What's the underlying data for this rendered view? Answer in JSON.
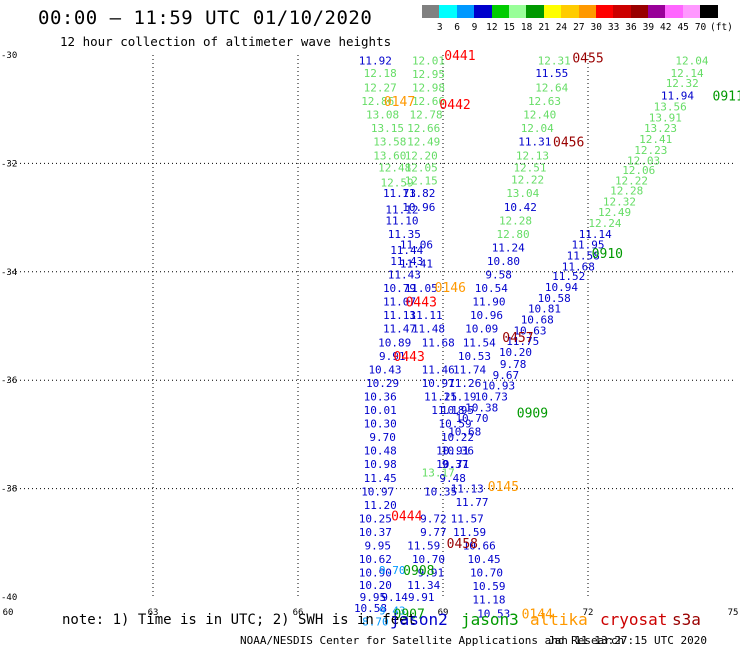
{
  "header": {
    "title": "00:00 – 11:59 UTC 01/10/2020",
    "subtitle": "12 hour collection of altimeter wave heights"
  },
  "legend": {
    "colors": [
      "#808080",
      "#00ffff",
      "#0099ff",
      "#0000cc",
      "#00cc00",
      "#99ff99",
      "#009900",
      "#ffff00",
      "#ffcc00",
      "#ff9900",
      "#ff0000",
      "#cc0000",
      "#990000",
      "#990099",
      "#ff66ff",
      "#ff99ff",
      "#000000"
    ],
    "labels": [
      "3",
      "6",
      "9",
      "12",
      "15",
      "18",
      "21",
      "24",
      "27",
      "30",
      "33",
      "36",
      "39",
      "42",
      "45",
      "70"
    ],
    "units": "(ft)"
  },
  "map": {
    "lon_ticks": [
      "60",
      "63",
      "66",
      "69",
      "72",
      "75"
    ],
    "lat_ticks": [
      "-30",
      "-32",
      "-34",
      "-36",
      "-38",
      "-40"
    ],
    "labels": [
      {
        "t": "11.92",
        "c": "#0000cc",
        "lon": 67.6,
        "lat": -30.1
      },
      {
        "t": "12.18",
        "c": "#66dd66",
        "lon": 67.7,
        "lat": -30.33
      },
      {
        "t": "12.27",
        "c": "#66dd66",
        "lon": 67.7,
        "lat": -30.6
      },
      {
        "t": "12.86",
        "c": "#66dd66",
        "lon": 67.65,
        "lat": -30.85
      },
      {
        "t": "13.08",
        "c": "#66dd66",
        "lon": 67.75,
        "lat": -31.1
      },
      {
        "t": "13.15",
        "c": "#66dd66",
        "lon": 67.85,
        "lat": -31.35
      },
      {
        "t": "13.58",
        "c": "#66dd66",
        "lon": 67.9,
        "lat": -31.6
      },
      {
        "t": "13.60",
        "c": "#66dd66",
        "lon": 67.9,
        "lat": -31.85
      },
      {
        "t": "12.48",
        "c": "#66dd66",
        "lon": 68.0,
        "lat": -32.08
      },
      {
        "t": "12.59",
        "c": "#66dd66",
        "lon": 68.05,
        "lat": -32.35
      },
      {
        "t": "11.73",
        "c": "#0000cc",
        "lon": 68.1,
        "lat": -32.55
      },
      {
        "t": "11.12",
        "c": "#0000cc",
        "lon": 68.15,
        "lat": -32.85
      },
      {
        "t": "11.10",
        "c": "#0000cc",
        "lon": 68.15,
        "lat": -33.05
      },
      {
        "t": "11.35",
        "c": "#0000cc",
        "lon": 68.2,
        "lat": -33.3
      },
      {
        "t": "11.44",
        "c": "#0000cc",
        "lon": 68.25,
        "lat": -33.6
      },
      {
        "t": "11.43",
        "c": "#0000cc",
        "lon": 68.25,
        "lat": -33.8
      },
      {
        "t": "11.43",
        "c": "#0000cc",
        "lon": 68.2,
        "lat": -34.05
      },
      {
        "t": "10.79",
        "c": "#0000cc",
        "lon": 68.1,
        "lat": -34.3
      },
      {
        "t": "11.07",
        "c": "#0000cc",
        "lon": 68.1,
        "lat": -34.55
      },
      {
        "t": "11.13",
        "c": "#0000cc",
        "lon": 68.1,
        "lat": -34.8
      },
      {
        "t": "11.47",
        "c": "#0000cc",
        "lon": 68.1,
        "lat": -35.05
      },
      {
        "t": "10.89",
        "c": "#0000cc",
        "lon": 68.0,
        "lat": -35.3
      },
      {
        "t": "9.91",
        "c": "#0000cc",
        "lon": 67.95,
        "lat": -35.55
      },
      {
        "t": "10.43",
        "c": "#0000cc",
        "lon": 67.8,
        "lat": -35.8
      },
      {
        "t": "10.29",
        "c": "#0000cc",
        "lon": 67.75,
        "lat": -36.05
      },
      {
        "t": "10.36",
        "c": "#0000cc",
        "lon": 67.7,
        "lat": -36.3
      },
      {
        "t": "10.01",
        "c": "#0000cc",
        "lon": 67.7,
        "lat": -36.55
      },
      {
        "t": "10.30",
        "c": "#0000cc",
        "lon": 67.7,
        "lat": -36.8
      },
      {
        "t": "9.70",
        "c": "#0000cc",
        "lon": 67.75,
        "lat": -37.05
      },
      {
        "t": "10.48",
        "c": "#0000cc",
        "lon": 67.7,
        "lat": -37.3
      },
      {
        "t": "10.98",
        "c": "#0000cc",
        "lon": 67.7,
        "lat": -37.55
      },
      {
        "t": "11.45",
        "c": "#0000cc",
        "lon": 67.7,
        "lat": -37.8
      },
      {
        "t": "10.97",
        "c": "#0000cc",
        "lon": 67.65,
        "lat": -38.05
      },
      {
        "t": "11.20",
        "c": "#0000cc",
        "lon": 67.7,
        "lat": -38.3
      },
      {
        "t": "10.25",
        "c": "#0000cc",
        "lon": 67.6,
        "lat": -38.55
      },
      {
        "t": "10.37",
        "c": "#0000cc",
        "lon": 67.6,
        "lat": -38.8
      },
      {
        "t": "9.95",
        "c": "#0000cc",
        "lon": 67.65,
        "lat": -39.05
      },
      {
        "t": "10.62",
        "c": "#0000cc",
        "lon": 67.6,
        "lat": -39.3
      },
      {
        "t": "10.90",
        "c": "#0000cc",
        "lon": 67.6,
        "lat": -39.55
      },
      {
        "t": "10.20",
        "c": "#0000cc",
        "lon": 67.6,
        "lat": -39.78
      },
      {
        "t": "9.95",
        "c": "#0000cc",
        "lon": 67.55,
        "lat": -40.0
      },
      {
        "t": "10.58",
        "c": "#0000cc",
        "lon": 67.5,
        "lat": -40.2
      },
      {
        "t": "8.70",
        "c": "#0099ff",
        "lon": 67.6,
        "lat": -40.45
      },
      {
        "t": "12.01",
        "c": "#66dd66",
        "lon": 68.7,
        "lat": -30.1
      },
      {
        "t": "12.95",
        "c": "#66dd66",
        "lon": 68.7,
        "lat": -30.35
      },
      {
        "t": "12.98",
        "c": "#66dd66",
        "lon": 68.7,
        "lat": -30.6
      },
      {
        "t": "12.66",
        "c": "#66dd66",
        "lon": 68.7,
        "lat": -30.85
      },
      {
        "t": "12.78",
        "c": "#66dd66",
        "lon": 68.65,
        "lat": -31.1
      },
      {
        "t": "12.66",
        "c": "#66dd66",
        "lon": 68.6,
        "lat": -31.35
      },
      {
        "t": "12.49",
        "c": "#66dd66",
        "lon": 68.6,
        "lat": -31.6
      },
      {
        "t": "12.20",
        "c": "#66dd66",
        "lon": 68.55,
        "lat": -31.85
      },
      {
        "t": "12.05",
        "c": "#66dd66",
        "lon": 68.55,
        "lat": -32.08
      },
      {
        "t": "12.15",
        "c": "#66dd66",
        "lon": 68.55,
        "lat": -32.32
      },
      {
        "t": "11.82",
        "c": "#0000cc",
        "lon": 68.5,
        "lat": -32.55
      },
      {
        "t": "10.96",
        "c": "#0000cc",
        "lon": 68.5,
        "lat": -32.8
      },
      {
        "t": "11.06",
        "c": "#0000cc",
        "lon": 68.45,
        "lat": -33.5
      },
      {
        "t": "11.41",
        "c": "#0000cc",
        "lon": 68.45,
        "lat": -33.85
      },
      {
        "t": "11.05",
        "c": "#0000cc",
        "lon": 68.55,
        "lat": -34.3
      },
      {
        "t": "11.11",
        "c": "#0000cc",
        "lon": 68.65,
        "lat": -34.8
      },
      {
        "t": "11.48",
        "c": "#0000cc",
        "lon": 68.7,
        "lat": -35.05
      },
      {
        "t": "11.68",
        "c": "#0000cc",
        "lon": 68.9,
        "lat": -35.3
      },
      {
        "t": "11.46",
        "c": "#0000cc",
        "lon": 68.9,
        "lat": -35.8
      },
      {
        "t": "10.97",
        "c": "#0000cc",
        "lon": 68.9,
        "lat": -36.05
      },
      {
        "t": "11.25",
        "c": "#0000cc",
        "lon": 68.95,
        "lat": -36.3
      },
      {
        "t": "11.18",
        "c": "#0000cc",
        "lon": 69.1,
        "lat": -36.55
      },
      {
        "t": "10.91",
        "c": "#0000cc",
        "lon": 69.2,
        "lat": -37.3
      },
      {
        "t": "9.37",
        "c": "#0000cc",
        "lon": 69.25,
        "lat": -37.55
      },
      {
        "t": "9.48",
        "c": "#0000cc",
        "lon": 69.2,
        "lat": -37.8
      },
      {
        "t": "10.35",
        "c": "#0000cc",
        "lon": 68.95,
        "lat": -38.05
      },
      {
        "t": "9.72",
        "c": "#0000cc",
        "lon": 68.8,
        "lat": -38.55
      },
      {
        "t": "9.77",
        "c": "#0000cc",
        "lon": 68.8,
        "lat": -38.8
      },
      {
        "t": "11.59",
        "c": "#0000cc",
        "lon": 68.6,
        "lat": -39.05
      },
      {
        "t": "10.70",
        "c": "#0000cc",
        "lon": 68.7,
        "lat": -39.3
      },
      {
        "t": "9.91",
        "c": "#0000cc",
        "lon": 68.75,
        "lat": -39.55
      },
      {
        "t": "11.34",
        "c": "#0000cc",
        "lon": 68.6,
        "lat": -39.78
      },
      {
        "t": "9.91",
        "c": "#0000cc",
        "lon": 68.55,
        "lat": -40.0
      },
      {
        "t": "12.31",
        "c": "#66dd66",
        "lon": 71.3,
        "lat": -30.1
      },
      {
        "t": "11.55",
        "c": "#0000cc",
        "lon": 71.25,
        "lat": -30.33
      },
      {
        "t": "12.64",
        "c": "#66dd66",
        "lon": 71.25,
        "lat": -30.6
      },
      {
        "t": "12.63",
        "c": "#66dd66",
        "lon": 71.1,
        "lat": -30.85
      },
      {
        "t": "12.40",
        "c": "#66dd66",
        "lon": 71.0,
        "lat": -31.1
      },
      {
        "t": "12.04",
        "c": "#66dd66",
        "lon": 70.95,
        "lat": -31.35
      },
      {
        "t": "11.31",
        "c": "#0000cc",
        "lon": 70.9,
        "lat": -31.6
      },
      {
        "t": "12.13",
        "c": "#66dd66",
        "lon": 70.85,
        "lat": -31.85
      },
      {
        "t": "12.51",
        "c": "#66dd66",
        "lon": 70.8,
        "lat": -32.08
      },
      {
        "t": "12.22",
        "c": "#66dd66",
        "lon": 70.75,
        "lat": -32.3
      },
      {
        "t": "13.04",
        "c": "#66dd66",
        "lon": 70.65,
        "lat": -32.55
      },
      {
        "t": "10.42",
        "c": "#0000cc",
        "lon": 70.6,
        "lat": -32.8
      },
      {
        "t": "12.28",
        "c": "#66dd66",
        "lon": 70.5,
        "lat": -33.05
      },
      {
        "t": "12.80",
        "c": "#66dd66",
        "lon": 70.45,
        "lat": -33.3
      },
      {
        "t": "11.24",
        "c": "#0000cc",
        "lon": 70.35,
        "lat": -33.55
      },
      {
        "t": "10.80",
        "c": "#0000cc",
        "lon": 70.25,
        "lat": -33.8
      },
      {
        "t": "9.58",
        "c": "#0000cc",
        "lon": 70.15,
        "lat": -34.05
      },
      {
        "t": "10.54",
        "c": "#0000cc",
        "lon": 70.0,
        "lat": -34.3
      },
      {
        "t": "11.90",
        "c": "#0000cc",
        "lon": 69.95,
        "lat": -34.55
      },
      {
        "t": "10.96",
        "c": "#0000cc",
        "lon": 69.9,
        "lat": -34.8
      },
      {
        "t": "10.09",
        "c": "#0000cc",
        "lon": 69.8,
        "lat": -35.05
      },
      {
        "t": "11.54",
        "c": "#0000cc",
        "lon": 69.75,
        "lat": -35.3
      },
      {
        "t": "10.53",
        "c": "#0000cc",
        "lon": 69.65,
        "lat": -35.55
      },
      {
        "t": "11.74",
        "c": "#0000cc",
        "lon": 69.55,
        "lat": -35.8
      },
      {
        "t": "11.26",
        "c": "#0000cc",
        "lon": 69.45,
        "lat": -36.05
      },
      {
        "t": "11.19",
        "c": "#0000cc",
        "lon": 69.35,
        "lat": -36.3
      },
      {
        "t": "10.95",
        "c": "#0000cc",
        "lon": 69.3,
        "lat": -36.55
      },
      {
        "t": "10.59",
        "c": "#0000cc",
        "lon": 69.25,
        "lat": -36.8
      },
      {
        "t": "10.22",
        "c": "#0000cc",
        "lon": 69.3,
        "lat": -37.05
      },
      {
        "t": "10.36",
        "c": "#0000cc",
        "lon": 69.3,
        "lat": -37.3
      },
      {
        "t": "10.71",
        "c": "#0000cc",
        "lon": 69.2,
        "lat": -37.55
      },
      {
        "t": "11.13",
        "c": "#0000cc",
        "lon": 69.5,
        "lat": -38.0
      },
      {
        "t": "11.77",
        "c": "#0000cc",
        "lon": 69.6,
        "lat": -38.25
      },
      {
        "t": "11.57",
        "c": "#0000cc",
        "lon": 69.5,
        "lat": -38.55
      },
      {
        "t": "11.59",
        "c": "#0000cc",
        "lon": 69.55,
        "lat": -38.8
      },
      {
        "t": "10.66",
        "c": "#0000cc",
        "lon": 69.75,
        "lat": -39.05
      },
      {
        "t": "10.45",
        "c": "#0000cc",
        "lon": 69.85,
        "lat": -39.3
      },
      {
        "t": "10.70",
        "c": "#0000cc",
        "lon": 69.9,
        "lat": -39.55
      },
      {
        "t": "10.59",
        "c": "#0000cc",
        "lon": 69.95,
        "lat": -39.8
      },
      {
        "t": "11.18",
        "c": "#0000cc",
        "lon": 69.95,
        "lat": -40.05
      },
      {
        "t": "10.53",
        "c": "#0000cc",
        "lon": 70.05,
        "lat": -40.3
      },
      {
        "t": "12.04",
        "c": "#66dd66",
        "lon": 74.15,
        "lat": -30.1
      },
      {
        "t": "12.14",
        "c": "#66dd66",
        "lon": 74.05,
        "lat": -30.33
      },
      {
        "t": "12.32",
        "c": "#66dd66",
        "lon": 73.95,
        "lat": -30.52
      },
      {
        "t": "11.94",
        "c": "#0000cc",
        "lon": 73.85,
        "lat": -30.75
      },
      {
        "t": "13.56",
        "c": "#66dd66",
        "lon": 73.7,
        "lat": -30.95
      },
      {
        "t": "13.91",
        "c": "#66dd66",
        "lon": 73.6,
        "lat": -31.15
      },
      {
        "t": "13.23",
        "c": "#66dd66",
        "lon": 73.5,
        "lat": -31.35
      },
      {
        "t": "12.41",
        "c": "#66dd66",
        "lon": 73.4,
        "lat": -31.55
      },
      {
        "t": "12.23",
        "c": "#66dd66",
        "lon": 73.3,
        "lat": -31.75
      },
      {
        "t": "12.03",
        "c": "#66dd66",
        "lon": 73.15,
        "lat": -31.95
      },
      {
        "t": "12.06",
        "c": "#66dd66",
        "lon": 73.05,
        "lat": -32.12
      },
      {
        "t": "12.22",
        "c": "#66dd66",
        "lon": 72.9,
        "lat": -32.32
      },
      {
        "t": "12.28",
        "c": "#66dd66",
        "lon": 72.8,
        "lat": -32.5
      },
      {
        "t": "12.32",
        "c": "#66dd66",
        "lon": 72.65,
        "lat": -32.7
      },
      {
        "t": "12.49",
        "c": "#66dd66",
        "lon": 72.55,
        "lat": -32.9
      },
      {
        "t": "12.24",
        "c": "#66dd66",
        "lon": 72.35,
        "lat": -33.1
      },
      {
        "t": "11.14",
        "c": "#0000cc",
        "lon": 72.15,
        "lat": -33.3
      },
      {
        "t": "11.95",
        "c": "#0000cc",
        "lon": 72.0,
        "lat": -33.5
      },
      {
        "t": "11.58",
        "c": "#0000cc",
        "lon": 71.9,
        "lat": -33.7
      },
      {
        "t": "11.68",
        "c": "#0000cc",
        "lon": 71.8,
        "lat": -33.9
      },
      {
        "t": "11.52",
        "c": "#0000cc",
        "lon": 71.6,
        "lat": -34.08
      },
      {
        "t": "10.94",
        "c": "#0000cc",
        "lon": 71.45,
        "lat": -34.28
      },
      {
        "t": "10.58",
        "c": "#0000cc",
        "lon": 71.3,
        "lat": -34.48
      },
      {
        "t": "10.81",
        "c": "#0000cc",
        "lon": 71.1,
        "lat": -34.68
      },
      {
        "t": "10.68",
        "c": "#0000cc",
        "lon": 70.95,
        "lat": -34.88
      },
      {
        "t": "10.63",
        "c": "#0000cc",
        "lon": 70.8,
        "lat": -35.08
      },
      {
        "t": "11.75",
        "c": "#0000cc",
        "lon": 70.65,
        "lat": -35.28
      },
      {
        "t": "10.20",
        "c": "#0000cc",
        "lon": 70.5,
        "lat": -35.48
      },
      {
        "t": "9.78",
        "c": "#0000cc",
        "lon": 70.45,
        "lat": -35.7
      },
      {
        "t": "9.67",
        "c": "#0000cc",
        "lon": 70.3,
        "lat": -35.9
      },
      {
        "t": "10.93",
        "c": "#0000cc",
        "lon": 70.15,
        "lat": -36.1
      },
      {
        "t": "10.73",
        "c": "#0000cc",
        "lon": 70.0,
        "lat": -36.3
      },
      {
        "t": "10.38",
        "c": "#0000cc",
        "lon": 69.8,
        "lat": -36.5
      },
      {
        "t": "10.70",
        "c": "#0000cc",
        "lon": 69.6,
        "lat": -36.7
      },
      {
        "t": "10.68",
        "c": "#0000cc",
        "lon": 69.45,
        "lat": -36.95
      },
      {
        "t": "9.70",
        "c": "#0099ff",
        "lon": 67.95,
        "lat": -39.5
      },
      {
        "t": "9.43",
        "c": "#0099ff",
        "lon": 67.95,
        "lat": -40.25
      },
      {
        "t": "9.14",
        "c": "#0000cc",
        "lon": 68.0,
        "lat": -40.0
      },
      {
        "t": "13.17",
        "c": "#66dd66",
        "lon": 68.9,
        "lat": -37.7
      }
    ],
    "passes": [
      {
        "t": "0441",
        "c": "#ff0000",
        "lon": 69.35,
        "lat": -30.0
      },
      {
        "t": "0455",
        "c": "#990000",
        "lon": 72.0,
        "lat": -30.05
      },
      {
        "t": "0147",
        "c": "#ff9900",
        "lon": 68.1,
        "lat": -30.85
      },
      {
        "t": "0442",
        "c": "#ff0000",
        "lon": 69.25,
        "lat": -30.9
      },
      {
        "t": "0911",
        "c": "#009900",
        "lon": 74.9,
        "lat": -30.75
      },
      {
        "t": "0456",
        "c": "#990000",
        "lon": 71.6,
        "lat": -31.6
      },
      {
        "t": "0910",
        "c": "#009900",
        "lon": 72.4,
        "lat": -33.65
      },
      {
        "t": "0146",
        "c": "#ff9900",
        "lon": 69.15,
        "lat": -34.28
      },
      {
        "t": "0443",
        "c": "#ff0000",
        "lon": 68.55,
        "lat": -34.55
      },
      {
        "t": "0457",
        "c": "#990000",
        "lon": 70.55,
        "lat": -35.2
      },
      {
        "t": "0443",
        "c": "#ff0000",
        "lon": 68.3,
        "lat": -35.55
      },
      {
        "t": "0909",
        "c": "#009900",
        "lon": 70.85,
        "lat": -36.6
      },
      {
        "t": "0145",
        "c": "#ff9900",
        "lon": 70.25,
        "lat": -37.95
      },
      {
        "t": "0444",
        "c": "#ff0000",
        "lon": 68.25,
        "lat": -38.5
      },
      {
        "t": "0458",
        "c": "#990000",
        "lon": 69.4,
        "lat": -39.0
      },
      {
        "t": "0908",
        "c": "#009900",
        "lon": 68.5,
        "lat": -39.5
      },
      {
        "t": "0144",
        "c": "#ff9900",
        "lon": 70.95,
        "lat": -40.3
      },
      {
        "t": "0907",
        "c": "#009900",
        "lon": 68.3,
        "lat": -40.3
      }
    ]
  },
  "footer": {
    "note": "note: 1) Time is in UTC; 2) SWH is in feet",
    "satellites": [
      {
        "name": "jason2",
        "color": "#0000cc"
      },
      {
        "name": "jason3",
        "color": "#009900"
      },
      {
        "name": "altika",
        "color": "#ff9900"
      },
      {
        "name": "cryosat",
        "color": "#cc0000"
      },
      {
        "name": "s3a",
        "color": "#990000"
      }
    ],
    "credit": "NOAA/NESDIS Center for Satellite Applications and Research",
    "timestamp": "Jan 11 13:27:15 UTC 2020"
  }
}
